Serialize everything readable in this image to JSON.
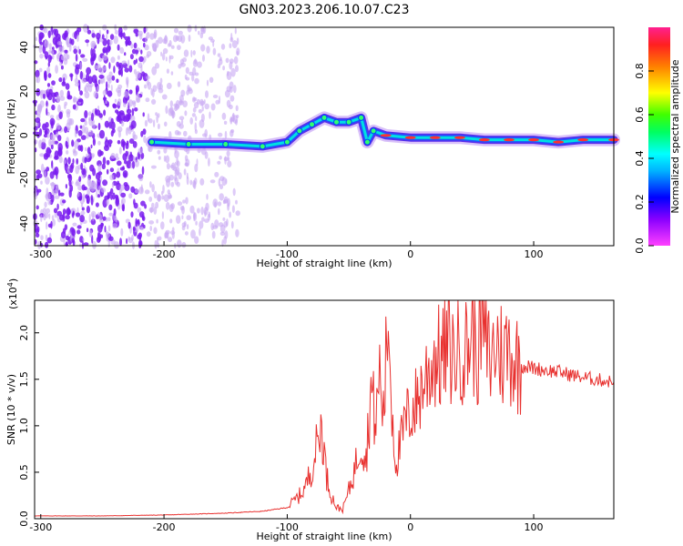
{
  "chart_data": [
    {
      "type": "heatmap",
      "title": "GN03.2023.206.10.07.C23",
      "xlabel": "Height of straight line (km)",
      "ylabel": "Frequency (Hz)",
      "xlim": [
        -305,
        165
      ],
      "ylim": [
        -50,
        49
      ],
      "xticks": [
        -300,
        -200,
        -100,
        0,
        100
      ],
      "yticks": [
        -40,
        -20,
        0,
        20,
        40
      ],
      "colorbar": {
        "label": "Normalized spectral amplitude",
        "range": [
          0.0,
          1.0
        ],
        "ticks": [
          "0.0",
          "0.2",
          "0.4",
          "0.6",
          "0.8"
        ]
      },
      "signal_track": [
        {
          "x": -210,
          "y": -3
        },
        {
          "x": -180,
          "y": -4
        },
        {
          "x": -150,
          "y": -4
        },
        {
          "x": -120,
          "y": -5
        },
        {
          "x": -100,
          "y": -3
        },
        {
          "x": -90,
          "y": 2
        },
        {
          "x": -80,
          "y": 5
        },
        {
          "x": -70,
          "y": 8
        },
        {
          "x": -60,
          "y": 6
        },
        {
          "x": -50,
          "y": 6
        },
        {
          "x": -40,
          "y": 8
        },
        {
          "x": -35,
          "y": -3
        },
        {
          "x": -30,
          "y": 2
        },
        {
          "x": -20,
          "y": 0
        },
        {
          "x": 0,
          "y": -1
        },
        {
          "x": 20,
          "y": -1
        },
        {
          "x": 40,
          "y": -1
        },
        {
          "x": 60,
          "y": -2
        },
        {
          "x": 80,
          "y": -2
        },
        {
          "x": 100,
          "y": -2
        },
        {
          "x": 120,
          "y": -3
        },
        {
          "x": 140,
          "y": -2
        },
        {
          "x": 165,
          "y": -2
        }
      ]
    },
    {
      "type": "line",
      "xlabel": "Height of straight line (km)",
      "ylabel": "SNR (10 * v/v)",
      "y_scale_note": "(x10",
      "y_scale_exp": "4",
      "xlim": [
        -305,
        165
      ],
      "ylim": [
        0,
        2.35
      ],
      "xticks": [
        -300,
        -200,
        -100,
        0,
        100
      ],
      "yticks": [
        "0.0",
        "0.5",
        "1.0",
        "1.5",
        "2.0"
      ],
      "series": [
        {
          "name": "SNR",
          "color": "#e8312f",
          "x": [
            -305,
            -250,
            -200,
            -150,
            -120,
            -100,
            -90,
            -85,
            -80,
            -75,
            -72,
            -68,
            -64,
            -60,
            -55,
            -50,
            -45,
            -40,
            -36,
            -32,
            -28,
            -25,
            -22,
            -18,
            -15,
            -12,
            -8,
            -4,
            0,
            5,
            10,
            15,
            20,
            25,
            30,
            35,
            40,
            45,
            50,
            55,
            58,
            60,
            65,
            70,
            75,
            80,
            85,
            90,
            100,
            110,
            120,
            130,
            140,
            150,
            165
          ],
          "y": [
            0.03,
            0.03,
            0.04,
            0.06,
            0.08,
            0.12,
            0.25,
            0.35,
            0.55,
            0.85,
            1.0,
            0.45,
            0.25,
            0.12,
            0.1,
            0.3,
            0.55,
            0.85,
            0.65,
            1.4,
            1.0,
            1.6,
            1.1,
            2.2,
            1.2,
            0.6,
            0.8,
            1.05,
            1.15,
            1.25,
            1.45,
            1.6,
            1.75,
            1.7,
            1.85,
            1.75,
            1.9,
            1.8,
            2.0,
            1.8,
            2.3,
            1.95,
            1.7,
            1.9,
            1.75,
            1.85,
            1.7,
            1.65,
            1.62,
            1.6,
            1.58,
            1.55,
            1.52,
            1.5,
            1.47
          ]
        }
      ]
    }
  ]
}
